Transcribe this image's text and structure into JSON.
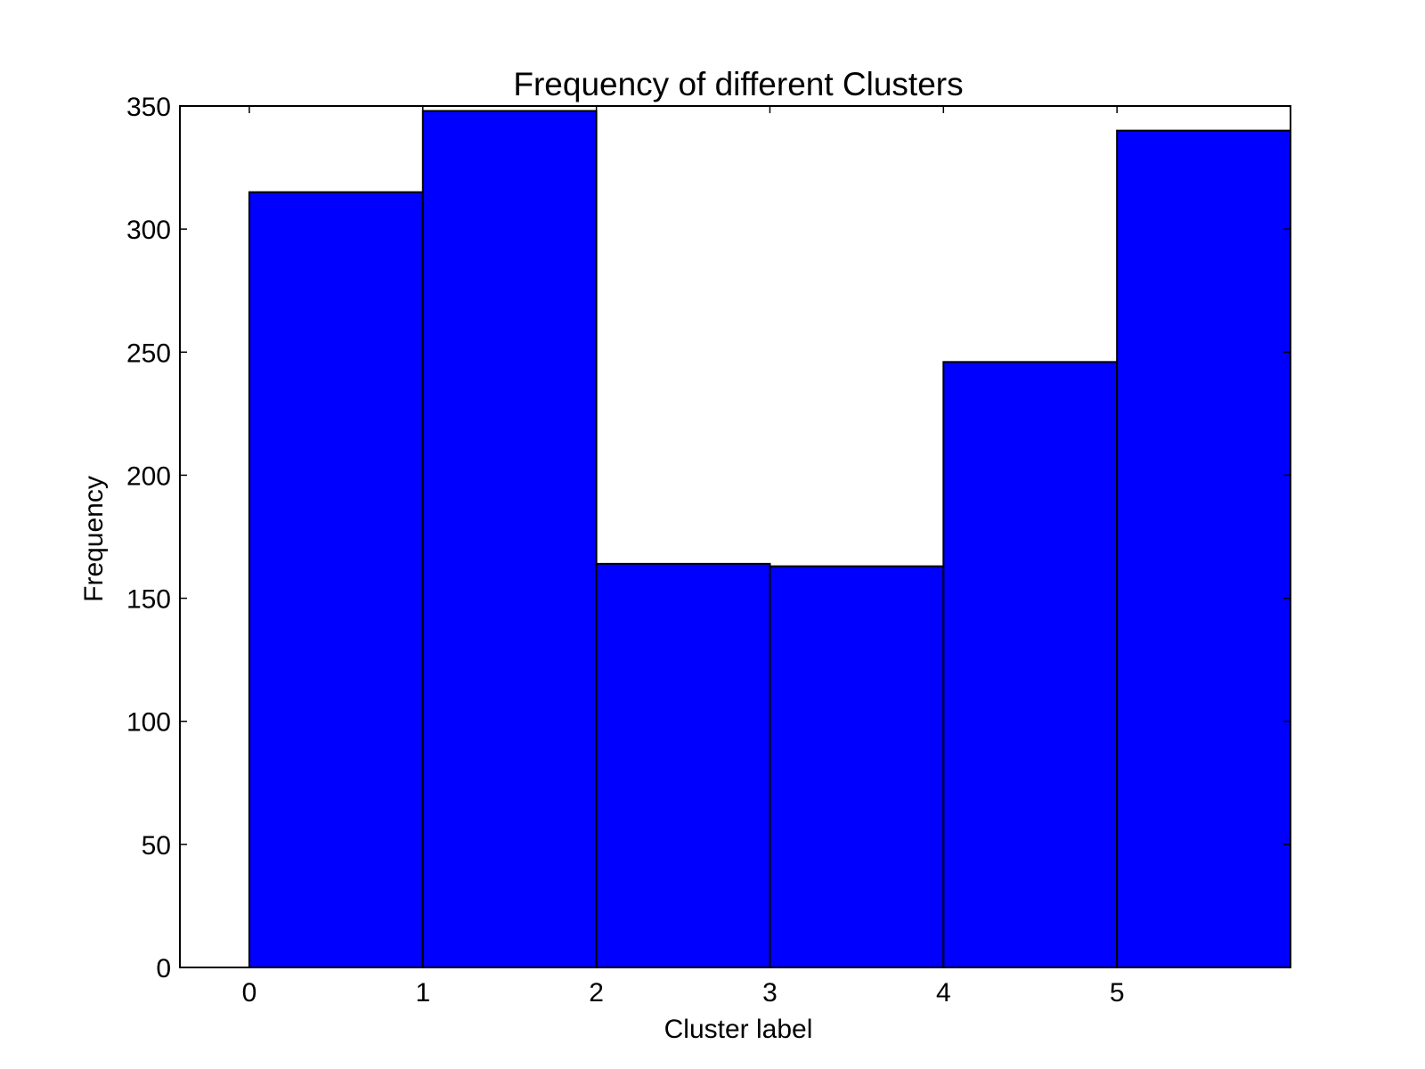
{
  "chart_data": {
    "type": "bar",
    "title": "Frequency of different Clusters",
    "xlabel": "Cluster label",
    "ylabel": "Frequency",
    "categories": [
      "0",
      "1",
      "2",
      "3",
      "4",
      "5"
    ],
    "values": [
      315,
      348,
      164,
      163,
      246,
      340
    ],
    "x_ticks": [
      "0",
      "1",
      "2",
      "3",
      "4",
      "5"
    ],
    "x_range": [
      -0.4,
      6.0
    ],
    "ylim": [
      0,
      350
    ],
    "y_ticks": [
      "0",
      "50",
      "100",
      "150",
      "200",
      "250",
      "300",
      "350"
    ],
    "grid": false,
    "legend": "none",
    "colors": {
      "bar_fill": "#0000ff",
      "bar_edge": "#000000",
      "axes": "#000000",
      "background": "#ffffff"
    }
  }
}
